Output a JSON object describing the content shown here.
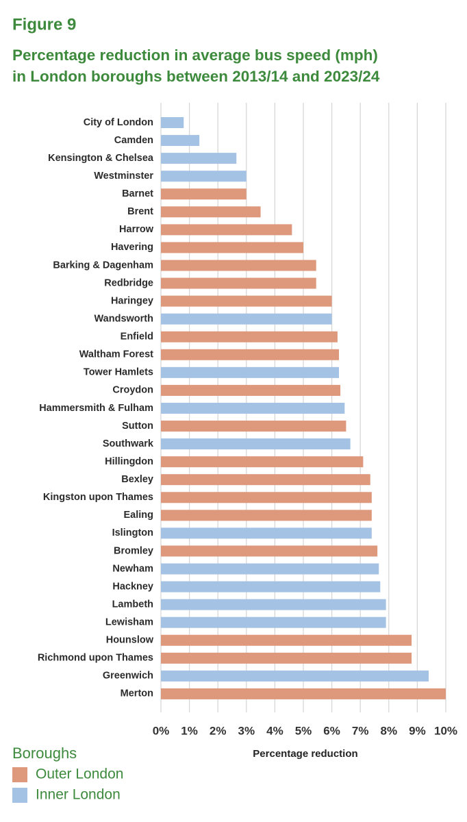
{
  "chart_data": {
    "type": "hbar",
    "figure_label": "Figure 9",
    "title": [
      "Percentage reduction in average bus speed (mph)",
      "in London boroughs between 2013/14 and 2023/24"
    ],
    "x_label": "Percentage reduction",
    "legend_title": "Boroughs",
    "legend": "bottom-left",
    "grid": true,
    "categories": [
      "City of London",
      "Camden",
      "Kensington & Chelsea",
      "Westminster",
      "Barnet",
      "Brent",
      "Harrow",
      "Havering",
      "Barking & Dagenham",
      "Redbridge",
      "Haringey",
      "Wandsworth",
      "Enfield",
      "Waltham Forest",
      "Tower Hamlets",
      "Croydon",
      "Hammersmith & Fulham",
      "Sutton",
      "Southwark",
      "Hillingdon",
      "Bexley",
      "Kingston upon Thames",
      "Ealing",
      "Islington",
      "Bromley",
      "Newham",
      "Hackney",
      "Lambeth",
      "Lewisham",
      "Hounslow",
      "Richmond upon Thames",
      "Greenwich",
      "Merton"
    ],
    "series": [
      {
        "name": "Outer London",
        "color": "#de987c",
        "values": [
          null,
          null,
          null,
          null,
          3.0,
          3.5,
          4.6,
          5.0,
          5.45,
          5.45,
          6.0,
          null,
          6.2,
          6.25,
          null,
          6.3,
          null,
          6.5,
          null,
          7.1,
          7.35,
          7.4,
          7.4,
          null,
          7.6,
          null,
          null,
          null,
          null,
          8.8,
          8.8,
          null,
          10.0
        ]
      },
      {
        "name": "Inner London",
        "color": "#a4c2e3",
        "values": [
          0.8,
          1.35,
          2.65,
          3.0,
          null,
          null,
          null,
          null,
          null,
          null,
          null,
          6.0,
          null,
          null,
          6.25,
          null,
          6.45,
          null,
          6.65,
          null,
          null,
          null,
          null,
          7.4,
          null,
          7.65,
          7.7,
          7.9,
          7.9,
          null,
          null,
          9.4,
          null
        ]
      }
    ],
    "xlim": [
      0,
      10
    ],
    "xticks": [
      {
        "value": 0,
        "label": "0%"
      },
      {
        "value": 1,
        "label": "1%"
      },
      {
        "value": 2,
        "label": "2%"
      },
      {
        "value": 3,
        "label": "3%"
      },
      {
        "value": 4,
        "label": "4%"
      },
      {
        "value": 5,
        "label": "5%"
      },
      {
        "value": 6,
        "label": "6%"
      },
      {
        "value": 7,
        "label": "7%"
      },
      {
        "value": 8,
        "label": "8%"
      },
      {
        "value": 9,
        "label": "9%"
      },
      {
        "value": 10,
        "label": "10%"
      }
    ]
  }
}
